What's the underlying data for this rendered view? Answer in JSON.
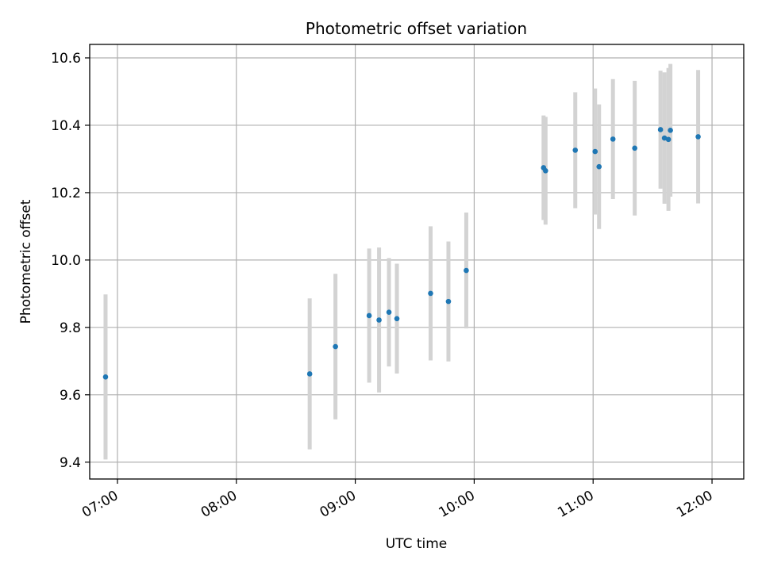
{
  "chart_data": {
    "type": "scatter",
    "title": "Photometric offset variation",
    "xlabel": "UTC time",
    "ylabel": "Photometric offset",
    "xlim": [
      "06:46",
      "12:16"
    ],
    "ylim": [
      9.35,
      10.64
    ],
    "xticks": [
      "07:00",
      "08:00",
      "09:00",
      "10:00",
      "11:00",
      "12:00"
    ],
    "yticks": [
      9.4,
      9.6,
      9.8,
      10.0,
      10.2,
      10.4,
      10.6
    ],
    "grid": true,
    "colors": {
      "point": "#1f77b4",
      "errorbar": "#d3d3d3",
      "grid": "#b0b0b0"
    },
    "series": [
      {
        "x": [
          "06:54",
          "08:37",
          "08:50",
          "09:07",
          "09:12",
          "09:17",
          "09:21",
          "09:38",
          "09:47",
          "09:56",
          "10:35",
          "10:36",
          "10:51",
          "11:01",
          "11:03",
          "11:10",
          "11:21",
          "11:34",
          "11:36",
          "11:38",
          "11:39",
          "11:53"
        ],
        "y": [
          9.653,
          9.662,
          9.743,
          9.835,
          9.822,
          9.845,
          9.826,
          9.901,
          9.877,
          9.969,
          10.274,
          10.265,
          10.326,
          10.322,
          10.277,
          10.359,
          10.332,
          10.387,
          10.362,
          10.358,
          10.385,
          10.366
        ],
        "yerr": [
          0.245,
          0.224,
          0.216,
          0.199,
          0.215,
          0.161,
          0.163,
          0.199,
          0.178,
          0.172,
          0.155,
          0.16,
          0.172,
          0.187,
          0.185,
          0.178,
          0.2,
          0.175,
          0.195,
          0.212,
          0.197,
          0.198
        ]
      }
    ]
  }
}
